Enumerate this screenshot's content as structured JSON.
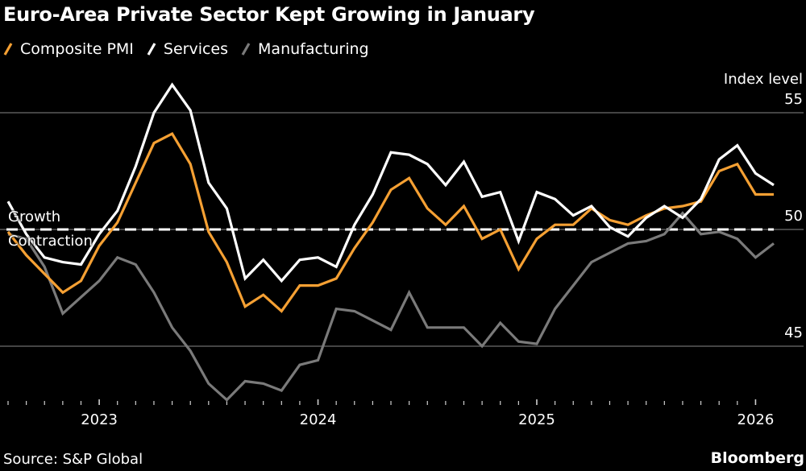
{
  "chart_data": {
    "type": "line",
    "title": "Euro-Area Private Sector Kept Growing in January",
    "ylabel": "Index level",
    "xlabel": "",
    "ylim": [
      41.5,
      57
    ],
    "yticks": [
      45,
      50,
      55
    ],
    "ytick_labels": [
      "45",
      "50",
      "55"
    ],
    "x": [
      "Jul 2022",
      "Aug 2022",
      "Sep 2022",
      "Oct 2022",
      "Nov 2022",
      "Dec 2022",
      "Jan 2023",
      "Feb 2023",
      "Mar 2023",
      "Apr 2023",
      "May 2023",
      "Jun 2023",
      "Jul 2023",
      "Aug 2023",
      "Sep 2023",
      "Oct 2023",
      "Nov 2023",
      "Dec 2023",
      "Jan 2024",
      "Feb 2024",
      "Mar 2024",
      "Apr 2024",
      "May 2024",
      "Jun 2024",
      "Jul 2024",
      "Aug 2024",
      "Sep 2024",
      "Oct 2024",
      "Nov 2024",
      "Dec 2024",
      "Jan 2025",
      "Feb 2025",
      "Mar 2025",
      "Apr 2025",
      "May 2025",
      "Jun 2025",
      "Jul 2025",
      "Aug 2025",
      "Sep 2025",
      "Oct 2025",
      "Nov 2025",
      "Dec 2025",
      "Jan 2026"
    ],
    "xtick_labels": [
      "2023",
      "2024",
      "2025",
      "2026"
    ],
    "grid": true,
    "legend_position": "top-left",
    "series": [
      {
        "name": "Composite PMI",
        "color": "#F5A033",
        "values": [
          49.9,
          48.9,
          48.1,
          47.3,
          47.8,
          49.3,
          50.3,
          52.0,
          53.7,
          54.1,
          52.8,
          49.9,
          48.6,
          46.7,
          47.2,
          46.5,
          47.6,
          47.6,
          47.9,
          49.2,
          50.3,
          51.7,
          52.2,
          50.9,
          50.2,
          51.0,
          49.6,
          50.0,
          48.3,
          49.6,
          50.2,
          50.2,
          50.9,
          50.4,
          50.2,
          50.6,
          50.9,
          51.0,
          51.2,
          52.5,
          52.8,
          51.5,
          51.5
        ]
      },
      {
        "name": "Services",
        "color": "#FFFFFF",
        "values": [
          51.2,
          49.8,
          48.8,
          48.6,
          48.5,
          49.8,
          50.8,
          52.7,
          55.0,
          56.2,
          55.1,
          52.0,
          50.9,
          47.9,
          48.7,
          47.8,
          48.7,
          48.8,
          48.4,
          50.2,
          51.5,
          53.3,
          53.2,
          52.8,
          51.9,
          52.9,
          51.4,
          51.6,
          49.5,
          51.6,
          51.3,
          50.6,
          51.0,
          50.1,
          49.7,
          50.5,
          51.0,
          50.5,
          51.3,
          53.0,
          53.6,
          52.4,
          51.9
        ]
      },
      {
        "name": "Manufacturing",
        "color": "#7A7A7A",
        "values": [
          49.8,
          49.6,
          48.4,
          46.4,
          47.1,
          47.8,
          48.8,
          48.5,
          47.3,
          45.8,
          44.8,
          43.4,
          42.7,
          43.5,
          43.4,
          43.1,
          44.2,
          44.4,
          46.6,
          46.5,
          46.1,
          45.7,
          47.3,
          45.8,
          45.8,
          45.8,
          45.0,
          46.0,
          45.2,
          45.1,
          46.6,
          47.6,
          48.6,
          49.0,
          49.4,
          49.5,
          49.8,
          50.7,
          49.8,
          49.9,
          49.6,
          48.8,
          49.4
        ]
      }
    ],
    "reference_line": {
      "value": 50,
      "style": "dashed",
      "label_above": "Growth",
      "label_below": "Contraction"
    }
  },
  "legend": [
    {
      "label": "Composite PMI",
      "color": "#F5A033"
    },
    {
      "label": "Services",
      "color": "#FFFFFF"
    },
    {
      "label": "Manufacturing",
      "color": "#7A7A7A"
    }
  ],
  "footer": {
    "source": "Source: S&P Global",
    "brand": "Bloomberg"
  }
}
